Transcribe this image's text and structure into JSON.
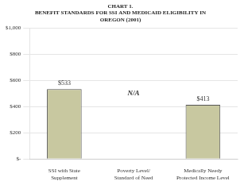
{
  "chart_data": {
    "type": "bar",
    "title": "CHART 1.\nBENEFIT STANDARDS FOR SSI AND MEDICAID ELIGIBILITY IN\nOREGON (2001)",
    "categories": [
      "SSI with State\nSupplement",
      "Poverty Level/\nStandard of Need",
      "Medically Needy\nProtected Income Level"
    ],
    "values": [
      533,
      null,
      413
    ],
    "value_labels": [
      "$533",
      "N/A",
      "$413"
    ],
    "data_labels": true,
    "color": "#c8c8a0",
    "ylim": [
      0,
      1000
    ],
    "yticks": [
      {
        "value": 0,
        "label": "$-"
      },
      {
        "value": 200,
        "label": "$200"
      },
      {
        "value": 400,
        "label": "$400"
      },
      {
        "value": 600,
        "label": "$600"
      },
      {
        "value": 800,
        "label": "$800"
      },
      {
        "value": 1000,
        "label": "$1,000"
      }
    ],
    "grid": true
  }
}
